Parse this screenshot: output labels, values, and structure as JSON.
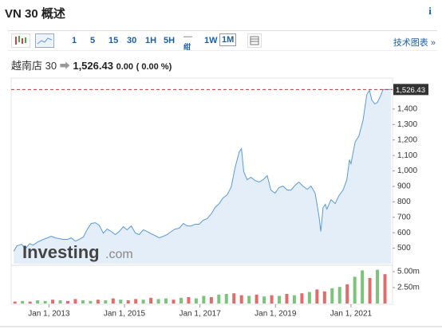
{
  "header": {
    "title": "VN 30 概述",
    "info_icon": "i"
  },
  "toolbar": {
    "intervals": [
      "1",
      "5",
      "15",
      "30",
      "1H",
      "5H"
    ],
    "week_top": "—",
    "week_bottom": "绀",
    "intervals2": [
      "1W",
      "1M"
    ],
    "link": "技术图表 »"
  },
  "quote": {
    "name": "越南店 30",
    "price": "1,526.43",
    "change": "0.00",
    "change_pct": "( 0.00 %)"
  },
  "watermark": {
    "brand": "Investing",
    "domain": ".com"
  },
  "chart_data": [
    {
      "type": "line",
      "color": "#5b9bd5",
      "fill": "#e4eef8",
      "x": [
        2012.07,
        2012.15,
        2012.28,
        2012.37,
        2012.49,
        2012.58,
        2012.7,
        2012.85,
        2012.96,
        2013.06,
        2013.17,
        2013.28,
        2013.38,
        2013.49,
        2013.59,
        2013.7,
        2013.8,
        2013.91,
        2014.02,
        2014.12,
        2014.23,
        2014.33,
        2014.44,
        2014.54,
        2014.65,
        2014.76,
        2014.86,
        2014.97,
        2015.07,
        2015.18,
        2015.29,
        2015.39,
        2015.5,
        2015.6,
        2015.71,
        2015.81,
        2015.92,
        2016.03,
        2016.13,
        2016.24,
        2016.34,
        2016.45,
        2016.56,
        2016.66,
        2016.77,
        2016.87,
        2016.98,
        2017.08,
        2017.19,
        2017.3,
        2017.4,
        2017.51,
        2017.61,
        2017.72,
        2017.83,
        2017.93,
        2018.04,
        2018.1,
        2018.16,
        2018.25,
        2018.35,
        2018.46,
        2018.57,
        2018.67,
        2018.78,
        2018.88,
        2018.99,
        2019.09,
        2019.2,
        2019.31,
        2019.41,
        2019.52,
        2019.62,
        2019.73,
        2019.84,
        2019.94,
        2020.05,
        2020.15,
        2020.2,
        2020.26,
        2020.32,
        2020.36,
        2020.47,
        2020.58,
        2020.68,
        2020.79,
        2020.89,
        2020.96,
        2021.0,
        2021.11,
        2021.21,
        2021.32,
        2021.42,
        2021.49,
        2021.55,
        2021.63,
        2021.7,
        2021.78,
        2021.85,
        2021.95,
        2022.06
      ],
      "values": [
        480,
        515,
        525,
        495,
        530,
        520,
        540,
        557,
        567,
        577,
        567,
        562,
        557,
        557,
        567,
        546,
        557,
        572,
        624,
        660,
        665,
        649,
        598,
        624,
        608,
        588,
        608,
        639,
        619,
        644,
        598,
        588,
        619,
        608,
        593,
        582,
        567,
        577,
        588,
        608,
        624,
        629,
        660,
        644,
        644,
        655,
        655,
        680,
        691,
        722,
        763,
        789,
        825,
        845,
        897,
        1021,
        1124,
        1144,
        995,
        943,
        959,
        938,
        928,
        943,
        969,
        876,
        856,
        892,
        902,
        876,
        876,
        907,
        928,
        902,
        881,
        902,
        856,
        711,
        608,
        763,
        784,
        753,
        814,
        789,
        840,
        876,
        943,
        1072,
        1046,
        1186,
        1227,
        1330,
        1495,
        1521,
        1459,
        1433,
        1443,
        1485,
        1526,
        1526,
        1526.43
      ],
      "xlim": [
        2012,
        2022.1
      ],
      "ylim": [
        400,
        1590
      ],
      "yticks": [
        500,
        600,
        700,
        800,
        900,
        {
          "value": 1000,
          "label": "1,000"
        },
        {
          "value": 1100,
          "label": "1,100"
        },
        {
          "value": 1200,
          "label": "1,200"
        },
        {
          "value": 1300,
          "label": "1,300"
        },
        {
          "value": 1400,
          "label": "1,400"
        }
      ],
      "last_value": {
        "value": 1526.43,
        "label": "1,526.43"
      },
      "last_value_color": "#c0392b"
    },
    {
      "type": "bar",
      "x": [
        2012.1,
        2012.3,
        2012.5,
        2012.7,
        2012.9,
        2013.1,
        2013.3,
        2013.5,
        2013.7,
        2013.9,
        2014.1,
        2014.3,
        2014.5,
        2014.7,
        2014.9,
        2015.1,
        2015.3,
        2015.5,
        2015.7,
        2015.9,
        2016.1,
        2016.3,
        2016.5,
        2016.7,
        2016.9,
        2017.1,
        2017.3,
        2017.5,
        2017.7,
        2017.9,
        2018.1,
        2018.3,
        2018.5,
        2018.7,
        2018.9,
        2019.1,
        2019.3,
        2019.5,
        2019.7,
        2019.9,
        2020.1,
        2020.3,
        2020.5,
        2020.7,
        2020.9,
        2021.1,
        2021.3,
        2021.5,
        2021.7,
        2021.9
      ],
      "values": [
        0.3,
        0.4,
        0.3,
        0.5,
        0.4,
        0.6,
        0.5,
        0.4,
        0.7,
        0.5,
        0.4,
        0.6,
        0.5,
        0.8,
        0.6,
        0.5,
        0.7,
        0.6,
        0.9,
        0.7,
        0.8,
        0.6,
        0.9,
        1.0,
        0.8,
        1.2,
        1.0,
        1.4,
        1.5,
        1.6,
        1.3,
        1.2,
        1.4,
        1.1,
        1.3,
        1.2,
        1.5,
        1.3,
        1.6,
        1.8,
        2.2,
        1.9,
        2.4,
        2.6,
        3.0,
        4.2,
        5.2,
        4.0,
        5.3,
        4.6
      ],
      "colors": [
        "#e06c6c",
        "#7cc47c",
        "#e06c6c",
        "#7cc47c",
        "#7cc47c",
        "#e06c6c",
        "#7cc47c",
        "#e06c6c",
        "#e06c6c",
        "#7cc47c",
        "#7cc47c",
        "#e06c6c",
        "#7cc47c",
        "#e06c6c",
        "#7cc47c",
        "#e06c6c",
        "#e06c6c",
        "#7cc47c",
        "#e06c6c",
        "#7cc47c",
        "#7cc47c",
        "#e06c6c",
        "#7cc47c",
        "#e06c6c",
        "#7cc47c",
        "#7cc47c",
        "#e06c6c",
        "#7cc47c",
        "#7cc47c",
        "#e06c6c",
        "#e06c6c",
        "#7cc47c",
        "#e06c6c",
        "#7cc47c",
        "#e06c6c",
        "#7cc47c",
        "#e06c6c",
        "#7cc47c",
        "#e06c6c",
        "#7cc47c",
        "#e06c6c",
        "#e06c6c",
        "#7cc47c",
        "#7cc47c",
        "#e06c6c",
        "#7cc47c",
        "#7cc47c",
        "#e06c6c",
        "#7cc47c",
        "#e06c6c"
      ],
      "xlim": [
        2012,
        2022.1
      ],
      "ylim": [
        0,
        5.75
      ],
      "yticks": [
        {
          "value": 2.5,
          "label": "2.50m"
        },
        {
          "value": 5,
          "label": "5.00m"
        }
      ],
      "xticks": [
        {
          "value": 2013,
          "label": "Jan 1, 2013"
        },
        {
          "value": 2015,
          "label": "Jan 1, 2015"
        },
        {
          "value": 2017,
          "label": "Jan 1, 2017"
        },
        {
          "value": 2019,
          "label": "Jan 1, 2019"
        },
        {
          "value": 2021,
          "label": "Jan 1, 2021"
        }
      ]
    }
  ]
}
